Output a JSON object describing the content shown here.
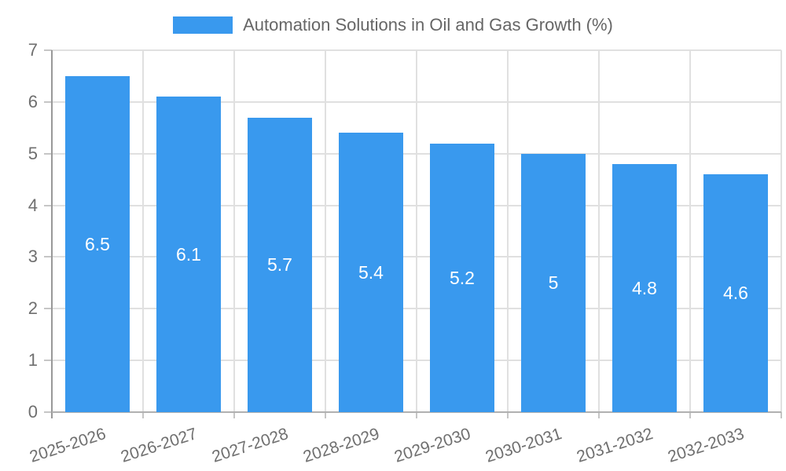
{
  "chart": {
    "colors": {
      "bar": "#3999EE",
      "grid": "#E0E0E0",
      "tick": "#C6C6C6",
      "axis_line": "#999999",
      "baseline": "#B0B0B0",
      "tick_label": "#6F6F6F",
      "title_text": "#666666",
      "value_label": "#FFFFFF",
      "background": "#FFFFFF"
    }
  },
  "chart_data": {
    "type": "bar",
    "title": "Automation Solutions in Oil and Gas Growth (%)",
    "categories": [
      "2025-2026",
      "2026-2027",
      "2027-2028",
      "2028-2029",
      "2029-2030",
      "2030-2031",
      "2031-2032",
      "2032-2033"
    ],
    "values": [
      6.5,
      6.1,
      5.7,
      5.4,
      5.2,
      5,
      4.8,
      4.6
    ],
    "value_labels": [
      "6.5",
      "6.1",
      "5.7",
      "5.4",
      "5.2",
      "5",
      "4.8",
      "4.6"
    ],
    "xlabel": "",
    "ylabel": "",
    "ylim": [
      0,
      7
    ],
    "yticks": [
      0,
      1,
      2,
      3,
      4,
      5,
      6,
      7
    ],
    "grid": true,
    "legend_position": "top",
    "x_tick_rotation_deg": -18
  }
}
